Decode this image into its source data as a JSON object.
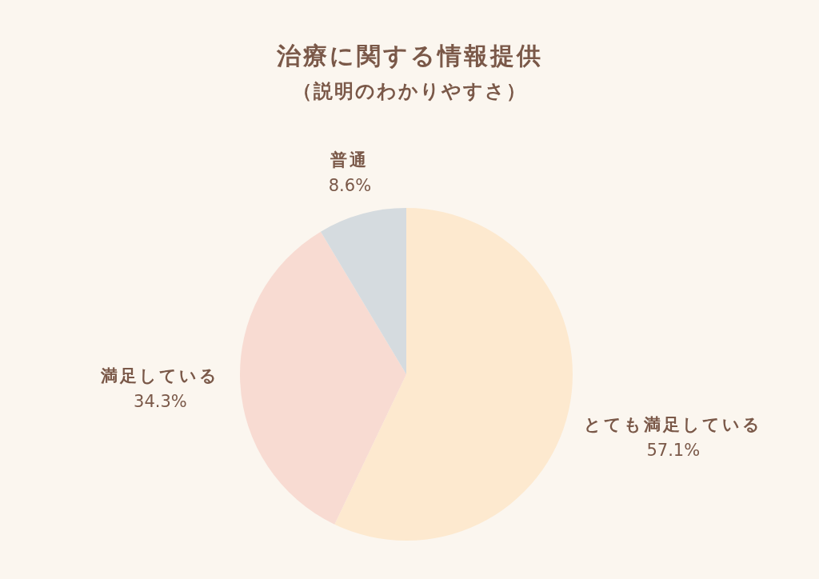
{
  "chart_data": {
    "type": "pie",
    "title": "治療に関する情報提供",
    "subtitle": "（説明のわかりやすさ）",
    "categories": [
      "とても満足している",
      "満足している",
      "普通"
    ],
    "values": [
      57.1,
      34.3,
      8.6
    ],
    "value_labels": [
      "57.1%",
      "34.3%",
      "8.6%"
    ],
    "colors": [
      "#fde9cf",
      "#f8dbd2",
      "#d5dbdf"
    ]
  }
}
